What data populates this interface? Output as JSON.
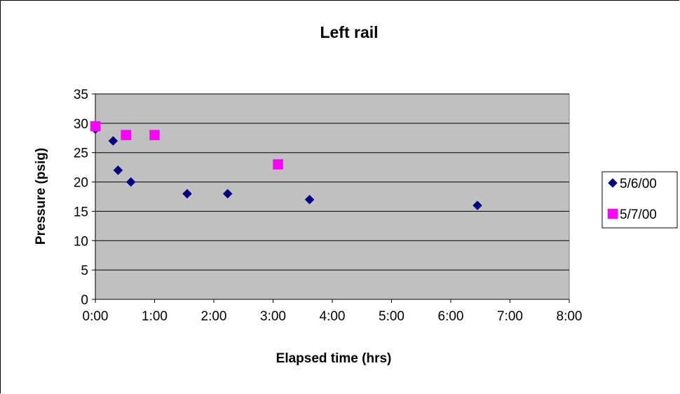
{
  "chart_data": {
    "type": "scatter",
    "title": "Left rail",
    "xlabel": "Elapsed time (hrs)",
    "ylabel": "Pressure (psig)",
    "xlim": [
      "0:00",
      "8:00"
    ],
    "ylim": [
      0,
      35
    ],
    "x_ticks": [
      "0:00",
      "1:00",
      "2:00",
      "3:00",
      "4:00",
      "5:00",
      "6:00",
      "7:00",
      "8:00"
    ],
    "y_ticks": [
      "0",
      "5",
      "10",
      "15",
      "20",
      "25",
      "30",
      "35"
    ],
    "grid": "horizontal",
    "plot_background": "#c0c0c0",
    "legend_placement": "right",
    "series": [
      {
        "name": "5/6/00",
        "marker": "diamond",
        "color": "#000080",
        "points": [
          {
            "x": "0:00",
            "y": 29
          },
          {
            "x": "0:18",
            "y": 27
          },
          {
            "x": "0:23",
            "y": 22
          },
          {
            "x": "0:36",
            "y": 20
          },
          {
            "x": "1:33",
            "y": 18
          },
          {
            "x": "2:14",
            "y": 18
          },
          {
            "x": "3:37",
            "y": 17
          },
          {
            "x": "6:27",
            "y": 16
          }
        ]
      },
      {
        "name": "5/7/00",
        "marker": "square",
        "color": "#ff00ff",
        "points": [
          {
            "x": "0:00",
            "y": 29.5
          },
          {
            "x": "0:31",
            "y": 28
          },
          {
            "x": "1:00",
            "y": 28
          },
          {
            "x": "3:05",
            "y": 23
          }
        ]
      }
    ]
  }
}
